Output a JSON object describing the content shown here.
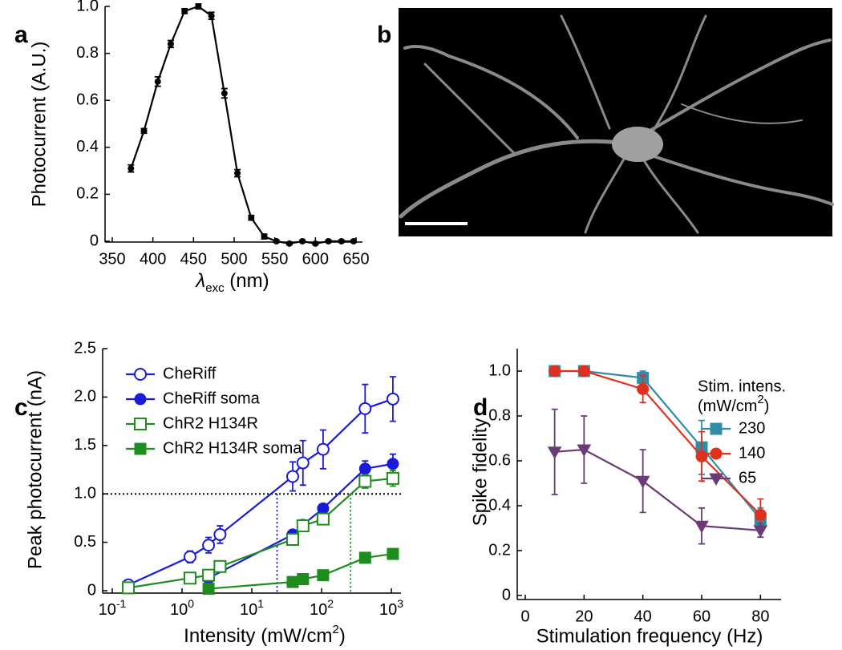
{
  "chart_data": [
    {
      "panel": "a",
      "type": "line",
      "ylabel": "Photocurrent (A.U.)",
      "xlabel": {
        "text": "λ",
        "sub": "exc",
        "end": " (nm)"
      },
      "xlim": [
        350,
        650
      ],
      "ylim": [
        0,
        1.0
      ],
      "xticks": [
        350,
        400,
        450,
        500,
        550,
        600,
        650
      ],
      "yticks": [
        0,
        {
          "value": 0.2,
          "label": "0.2"
        },
        {
          "value": 0.4,
          "label": "0.4"
        },
        {
          "value": 0.6,
          "label": "0.6"
        },
        {
          "value": 0.8,
          "label": "0.8"
        },
        {
          "value": 1.0,
          "label": "1.0"
        }
      ],
      "series": [
        {
          "color": "#000000",
          "marker": "circle",
          "x": [
            373,
            389,
            406,
            422,
            439,
            456,
            472,
            488,
            504,
            521,
            537,
            552,
            568,
            584,
            600,
            616,
            632,
            647
          ],
          "values": [
            0.31,
            0.47,
            0.68,
            0.84,
            0.98,
            1.0,
            0.96,
            0.63,
            0.29,
            0.1,
            0.02,
            0.0,
            -0.01,
            0.0,
            -0.01,
            0.0,
            0.0,
            0.0
          ],
          "errors": [
            0.015,
            0.01,
            0.02,
            0.015,
            0.01,
            0.01,
            0.015,
            0.02,
            0.015,
            0.01,
            0.01,
            0.005,
            0.005,
            0.005,
            0.005,
            0.005,
            0.005,
            0.005
          ]
        }
      ]
    },
    {
      "panel": "b",
      "type": "image"
    },
    {
      "panel": "c",
      "type": "line",
      "xscale": "log",
      "ylabel": "Peak photocurrent (nA)",
      "xlabel": {
        "text": "Intensity (mW/cm",
        "sup": "2",
        "end": ")"
      },
      "xlim": [
        0.1,
        1300
      ],
      "ylim": [
        0,
        2.5
      ],
      "xticks": [
        {
          "value": 0.1,
          "label": "10",
          "sup": "-1"
        },
        {
          "value": 1,
          "label": "10",
          "sup": "0"
        },
        {
          "value": 10,
          "label": "10",
          "sup": "1"
        },
        {
          "value": 100,
          "label": "10",
          "sup": "2"
        },
        {
          "value": 1000,
          "label": "10",
          "sup": "3"
        }
      ],
      "yticks": [
        0,
        {
          "value": 0.5,
          "label": "0.5"
        },
        {
          "value": 1.0,
          "label": "1.0"
        },
        {
          "value": 1.5,
          "label": "1.5"
        },
        {
          "value": 2.0,
          "label": "2.0"
        },
        {
          "value": 2.5,
          "label": "2.5"
        }
      ],
      "hline": 1.0,
      "vlines": [
        {
          "x": 23,
          "color": "#1a1adb"
        },
        {
          "x": 260,
          "color": "#1e8c1e"
        }
      ],
      "series": [
        {
          "name": "CheRiff",
          "color": "#1a1adb",
          "marker": "circle-open",
          "x": [
            0.17,
            1.3,
            2.4,
            3.5,
            38.5,
            54,
            105,
            420,
            1050
          ],
          "values": [
            0.06,
            0.35,
            0.47,
            0.58,
            1.18,
            1.32,
            1.46,
            1.88,
            1.98
          ],
          "errors": [
            0.03,
            0.06,
            0.08,
            0.09,
            0.15,
            0.23,
            0.2,
            0.25,
            0.23
          ]
        },
        {
          "name": "CheRiff soma",
          "color": "#1a1adb",
          "marker": "circle",
          "x": [
            2.4,
            38.5,
            54,
            105,
            420,
            1050
          ],
          "values": [
            0.13,
            0.58,
            0.68,
            0.85,
            1.26,
            1.31
          ],
          "errors": [
            0.03,
            0.04,
            0.05,
            0.04,
            0.08,
            0.1
          ]
        },
        {
          "name": "ChR2 H134R",
          "color": "#1e8c1e",
          "marker": "square-open",
          "x": [
            0.17,
            1.3,
            2.4,
            3.5,
            38.5,
            54,
            105,
            420,
            1050
          ],
          "values": [
            0.03,
            0.13,
            0.16,
            0.25,
            0.53,
            0.67,
            0.74,
            1.13,
            1.16
          ],
          "errors": [
            0.01,
            0.02,
            0.02,
            0.03,
            0.05,
            0.05,
            0.05,
            0.07,
            0.08
          ]
        },
        {
          "name": "ChR2 H134R soma",
          "color": "#1e8c1e",
          "marker": "square",
          "x": [
            2.4,
            38.5,
            54,
            105,
            420,
            1050
          ],
          "values": [
            0.02,
            0.09,
            0.12,
            0.16,
            0.34,
            0.38
          ],
          "errors": [
            0.01,
            0.01,
            0.02,
            0.02,
            0.03,
            0.03
          ]
        }
      ]
    },
    {
      "panel": "d",
      "type": "line",
      "ylabel": "Spike fidelity",
      "xlabel": "Stimulation frequency (Hz)",
      "legend_title": "Stim. intens.",
      "legend_unit": {
        "text": "(mW/cm",
        "sup": "2",
        "end": ")"
      },
      "xlim": [
        0,
        87
      ],
      "ylim": [
        0,
        1.1
      ],
      "xticks": [
        0,
        20,
        40,
        60,
        80
      ],
      "yticks": [
        0,
        {
          "value": 0.2,
          "label": "0.2"
        },
        {
          "value": 0.4,
          "label": "0.4"
        },
        {
          "value": 0.6,
          "label": "0.6"
        },
        {
          "value": 0.8,
          "label": "0.8"
        },
        {
          "value": 1.0,
          "label": "1.0"
        }
      ],
      "series": [
        {
          "name": "230",
          "color": "#2e8ca8",
          "marker": "square",
          "x": [
            10,
            20,
            40,
            60,
            80
          ],
          "values": [
            1.0,
            1.0,
            0.97,
            0.66,
            0.34
          ],
          "errors": [
            0.01,
            0.01,
            0.03,
            0.12,
            0.05
          ]
        },
        {
          "name": "140",
          "color": "#e0301e",
          "marker": "circle",
          "x": [
            10,
            20,
            40,
            60,
            80
          ],
          "values": [
            1.0,
            1.0,
            0.92,
            0.62,
            0.36
          ],
          "errors": [
            0.01,
            0.01,
            0.06,
            0.11,
            0.07
          ]
        },
        {
          "name": "65",
          "color": "#6b3a78",
          "marker": "triangle-down",
          "x": [
            10,
            20,
            40,
            60,
            80
          ],
          "values": [
            0.64,
            0.65,
            0.51,
            0.31,
            0.29
          ],
          "errors": [
            0.19,
            0.15,
            0.14,
            0.08,
            0.03
          ]
        }
      ]
    }
  ]
}
